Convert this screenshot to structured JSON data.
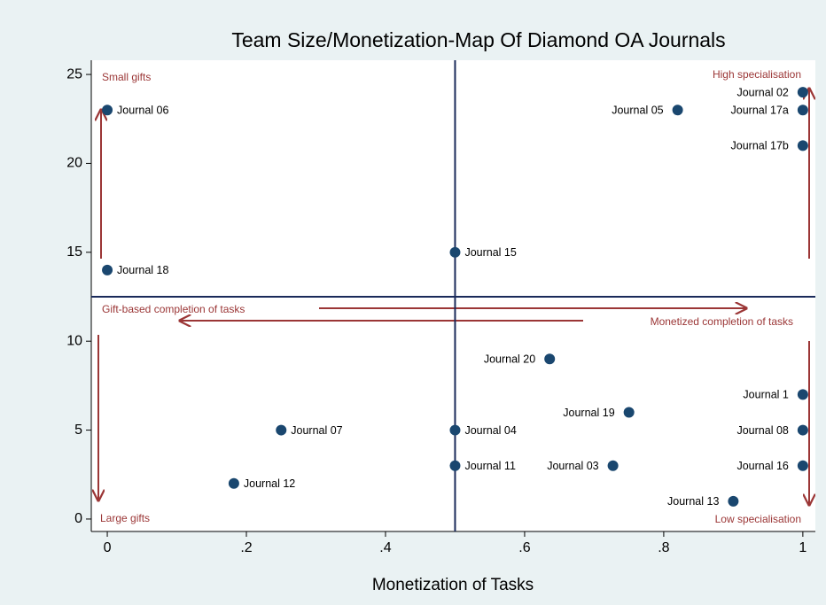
{
  "chart_data": {
    "type": "scatter",
    "title": "Team Size/Monetization-Map Of Diamond OA Journals",
    "xlabel": "Monetization of Tasks",
    "x": [
      0,
      0,
      0.5,
      1,
      0.82,
      1,
      1,
      0.636,
      1,
      0.75,
      1,
      0.25,
      0.5,
      0.5,
      0.727,
      1,
      0.182,
      0.9
    ],
    "values": [
      23,
      14,
      15,
      24,
      23,
      23,
      21,
      9,
      7,
      6,
      5,
      5,
      5,
      3,
      3,
      3,
      2,
      1
    ],
    "point_labels": [
      "Journal 06",
      "Journal 18",
      "Journal 15",
      "Journal 02",
      "Journal 05",
      "Journal 17a",
      "Journal 17b",
      "Journal 20",
      "Journal 1",
      "Journal 19",
      "Journal 08",
      "Journal 07",
      "Journal 04",
      "Journal 11",
      "Journal 03",
      "Journal 16",
      "Journal 12",
      "Journal 13"
    ],
    "color": "#1a476f",
    "xlim": [
      -0.023,
      1.018
    ],
    "ylim": [
      -0.7,
      25.8
    ],
    "xticks": [
      0,
      {
        "value": 0.2,
        "label": ".2"
      },
      {
        "value": 0.4,
        "label": ".4"
      },
      {
        "value": 0.6,
        "label": ".6"
      },
      {
        "value": 0.8,
        "label": ".8"
      },
      1
    ],
    "yticks": [
      0,
      5,
      10,
      15,
      20,
      25
    ],
    "xline": 0.5,
    "yline": 12.5,
    "line_color": "#1a2a5a",
    "annotations": [
      "Small gifts",
      "High specialisation",
      "Gift-based completion of tasks",
      "Monetized completion of tasks",
      "Large gifts",
      "Low specialisation"
    ]
  }
}
